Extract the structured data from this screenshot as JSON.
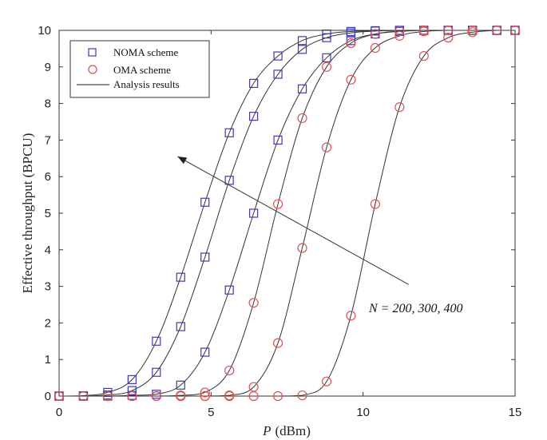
{
  "chart_data": {
    "type": "line",
    "title": "",
    "xlabel": "P (dBm)",
    "xlabel_italic_part": "P",
    "xlabel_unit": "(dBm)",
    "ylabel": "Effective throughput (BPCU)",
    "xlim": [
      0,
      15
    ],
    "ylim": [
      0,
      10
    ],
    "xticks": [
      0,
      5,
      10,
      15
    ],
    "yticks": [
      0,
      1,
      2,
      3,
      4,
      5,
      6,
      7,
      8,
      9,
      10
    ],
    "grid": false,
    "legend_placement": "top-left",
    "legend": [
      {
        "label": "NOMA scheme",
        "marker": "square",
        "color": "#3a3ab8"
      },
      {
        "label": "OMA scheme",
        "marker": "circle",
        "color": "#e05050"
      },
      {
        "label": "Analysis results",
        "marker": "line",
        "color": "#222222"
      }
    ],
    "annotation": {
      "text": "N = 200, 300, 400",
      "arrow_from": [
        11.5,
        3.05
      ],
      "arrow_to": [
        3.9,
        6.55
      ]
    },
    "x": [
      0,
      0.8,
      1.6,
      2.4,
      3.2,
      4.0,
      4.8,
      5.6,
      6.4,
      7.2,
      8.0,
      8.8,
      9.6,
      10.4,
      11.2,
      12.0,
      12.8,
      13.6,
      14.4,
      15.0
    ],
    "series": [
      {
        "name": "NOMA scheme",
        "group": "noma",
        "values": [
          0,
          0.01,
          0.1,
          0.45,
          1.5,
          3.25,
          5.3,
          7.2,
          8.55,
          9.3,
          9.72,
          9.9,
          9.97,
          9.99,
          10,
          10,
          10,
          10,
          10,
          10
        ]
      },
      {
        "name": "",
        "group": "noma",
        "values": [
          0,
          0,
          0.03,
          0.15,
          0.65,
          1.9,
          3.8,
          5.9,
          7.65,
          8.8,
          9.48,
          9.8,
          9.93,
          9.98,
          10,
          10,
          10,
          10,
          10,
          10
        ]
      },
      {
        "name": "",
        "group": "noma",
        "values": [
          0,
          0,
          0,
          0.02,
          0.05,
          0.3,
          1.2,
          2.9,
          5.0,
          7.0,
          8.4,
          9.25,
          9.72,
          9.9,
          9.97,
          10,
          10,
          10,
          10,
          10
        ]
      },
      {
        "name": "OMA scheme",
        "group": "oma",
        "values": [
          0,
          0,
          0,
          0,
          0,
          0.02,
          0.1,
          0.7,
          2.55,
          5.25,
          7.6,
          9.0,
          9.65,
          9.9,
          9.98,
          10,
          10,
          10,
          10,
          10
        ]
      },
      {
        "name": "",
        "group": "oma",
        "values": [
          0,
          0,
          0,
          0,
          0,
          0,
          0,
          0.02,
          0.25,
          1.45,
          4.05,
          6.8,
          8.65,
          9.52,
          9.85,
          9.97,
          10,
          10,
          10,
          10
        ]
      },
      {
        "name": "",
        "group": "oma",
        "values": [
          0,
          0,
          0,
          0,
          0,
          0,
          0,
          0,
          0,
          0,
          0.02,
          0.4,
          2.2,
          5.25,
          7.9,
          9.3,
          9.8,
          9.95,
          10,
          10
        ]
      }
    ]
  }
}
